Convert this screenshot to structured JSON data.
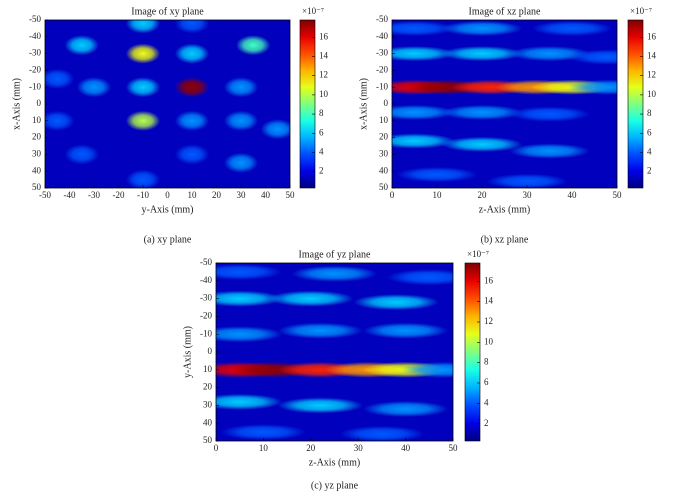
{
  "chart_data": [
    {
      "type": "heatmap",
      "title": "Image of xy plane",
      "xlabel": "y-Axis (mm)",
      "ylabel": "x-Axis (mm)",
      "caption": "(a)  xy plane",
      "xlim": [
        -50,
        50
      ],
      "ylim": [
        -50,
        50
      ],
      "y_reversed": true,
      "xticks": [
        -50,
        -40,
        -30,
        -20,
        -10,
        0,
        10,
        20,
        30,
        40,
        50
      ],
      "yticks": [
        -50,
        -40,
        -30,
        -20,
        -10,
        0,
        10,
        20,
        30,
        40,
        50
      ],
      "clim": [
        0.3,
        17.8
      ],
      "cticks": [
        2,
        4,
        6,
        8,
        10,
        12,
        14,
        16
      ],
      "cexponent": "×10⁻⁷",
      "colormap": "jet",
      "points": [
        {
          "x": 10,
          "y": -10,
          "value": 17.5
        },
        {
          "x": -10,
          "y": -30,
          "value": 11
        },
        {
          "x": -10,
          "y": 10,
          "value": 10
        },
        {
          "x": -10,
          "y": -10,
          "value": 6
        },
        {
          "x": 10,
          "y": -30,
          "value": 6
        },
        {
          "x": 10,
          "y": 10,
          "value": 5
        },
        {
          "x": -30,
          "y": -10,
          "value": 5
        },
        {
          "x": 30,
          "y": -10,
          "value": 5
        },
        {
          "x": 30,
          "y": 10,
          "value": 5
        },
        {
          "x": -35,
          "y": -35,
          "value": 6
        },
        {
          "x": 35,
          "y": -35,
          "value": 8
        },
        {
          "x": -10,
          "y": -48,
          "value": 6
        },
        {
          "x": 10,
          "y": -48,
          "value": 4
        },
        {
          "x": -35,
          "y": 30,
          "value": 4
        },
        {
          "x": 30,
          "y": 35,
          "value": 5
        },
        {
          "x": -10,
          "y": 45,
          "value": 4
        },
        {
          "x": 10,
          "y": 30,
          "value": 4
        },
        {
          "x": 45,
          "y": 15,
          "value": 5
        },
        {
          "x": -45,
          "y": 10,
          "value": 4
        },
        {
          "x": -45,
          "y": -15,
          "value": 4
        }
      ]
    },
    {
      "type": "heatmap",
      "title": "Image of xz plane",
      "xlabel": "z-Axis (mm)",
      "ylabel": "x-Axis (mm)",
      "caption": "(b)  xz plane",
      "xlim": [
        0,
        50
      ],
      "ylim": [
        -50,
        50
      ],
      "y_reversed": true,
      "xticks": [
        0,
        10,
        20,
        30,
        40,
        50
      ],
      "yticks": [
        -50,
        -40,
        -30,
        -20,
        -10,
        0,
        10,
        20,
        30,
        40,
        50
      ],
      "clim": [
        0.3,
        17.8
      ],
      "cticks": [
        2,
        4,
        6,
        8,
        10,
        12,
        14,
        16
      ],
      "cexponent": "×10⁻⁷",
      "colormap": "jet",
      "points": [
        {
          "x": 5,
          "y": -45,
          "value": 4
        },
        {
          "x": 20,
          "y": -45,
          "value": 5
        },
        {
          "x": 40,
          "y": -45,
          "value": 4
        },
        {
          "x": 5,
          "y": -30,
          "value": 6
        },
        {
          "x": 20,
          "y": -30,
          "value": 6
        },
        {
          "x": 35,
          "y": -30,
          "value": 5
        },
        {
          "x": 48,
          "y": -28,
          "value": 4
        },
        {
          "x": 5,
          "y": -10,
          "value": 16
        },
        {
          "x": 12,
          "y": -10,
          "value": 17.5
        },
        {
          "x": 22,
          "y": -10,
          "value": 15
        },
        {
          "x": 32,
          "y": -10,
          "value": 13
        },
        {
          "x": 40,
          "y": -10,
          "value": 11
        },
        {
          "x": 48,
          "y": -10,
          "value": 5
        },
        {
          "x": 5,
          "y": 5,
          "value": 5
        },
        {
          "x": 20,
          "y": 5,
          "value": 5
        },
        {
          "x": 35,
          "y": 6,
          "value": 4
        },
        {
          "x": 5,
          "y": 22,
          "value": 6
        },
        {
          "x": 20,
          "y": 24,
          "value": 6
        },
        {
          "x": 35,
          "y": 28,
          "value": 5
        },
        {
          "x": 10,
          "y": 42,
          "value": 4
        },
        {
          "x": 30,
          "y": 46,
          "value": 4
        }
      ]
    },
    {
      "type": "heatmap",
      "title": "Image of yz plane",
      "xlabel": "z-Axis (mm)",
      "ylabel": "y-Axis (mm)",
      "caption": "(c)  yz plane",
      "xlim": [
        0,
        50
      ],
      "ylim": [
        -50,
        50
      ],
      "y_reversed": true,
      "xticks": [
        0,
        10,
        20,
        30,
        40,
        50
      ],
      "yticks": [
        -50,
        -40,
        -30,
        -20,
        -10,
        0,
        10,
        20,
        30,
        40,
        50
      ],
      "clim": [
        0.3,
        17.8
      ],
      "cticks": [
        2,
        4,
        6,
        8,
        10,
        12,
        14,
        16
      ],
      "cexponent": "×10⁻⁷",
      "colormap": "jet",
      "points": [
        {
          "x": 5,
          "y": -45,
          "value": 4
        },
        {
          "x": 25,
          "y": -44,
          "value": 5
        },
        {
          "x": 45,
          "y": -42,
          "value": 4
        },
        {
          "x": 5,
          "y": -30,
          "value": 6
        },
        {
          "x": 20,
          "y": -30,
          "value": 6
        },
        {
          "x": 38,
          "y": -28,
          "value": 6
        },
        {
          "x": 5,
          "y": 10,
          "value": 16
        },
        {
          "x": 12,
          "y": 10,
          "value": 17.5
        },
        {
          "x": 22,
          "y": 10,
          "value": 15
        },
        {
          "x": 32,
          "y": 10,
          "value": 13
        },
        {
          "x": 40,
          "y": 10,
          "value": 11
        },
        {
          "x": 48,
          "y": 10,
          "value": 5
        },
        {
          "x": 5,
          "y": -10,
          "value": 5
        },
        {
          "x": 22,
          "y": -12,
          "value": 5
        },
        {
          "x": 40,
          "y": -12,
          "value": 5
        },
        {
          "x": 5,
          "y": 28,
          "value": 6
        },
        {
          "x": 22,
          "y": 30,
          "value": 6
        },
        {
          "x": 40,
          "y": 32,
          "value": 5
        },
        {
          "x": 10,
          "y": 45,
          "value": 4
        },
        {
          "x": 35,
          "y": 46,
          "value": 4
        }
      ]
    }
  ]
}
